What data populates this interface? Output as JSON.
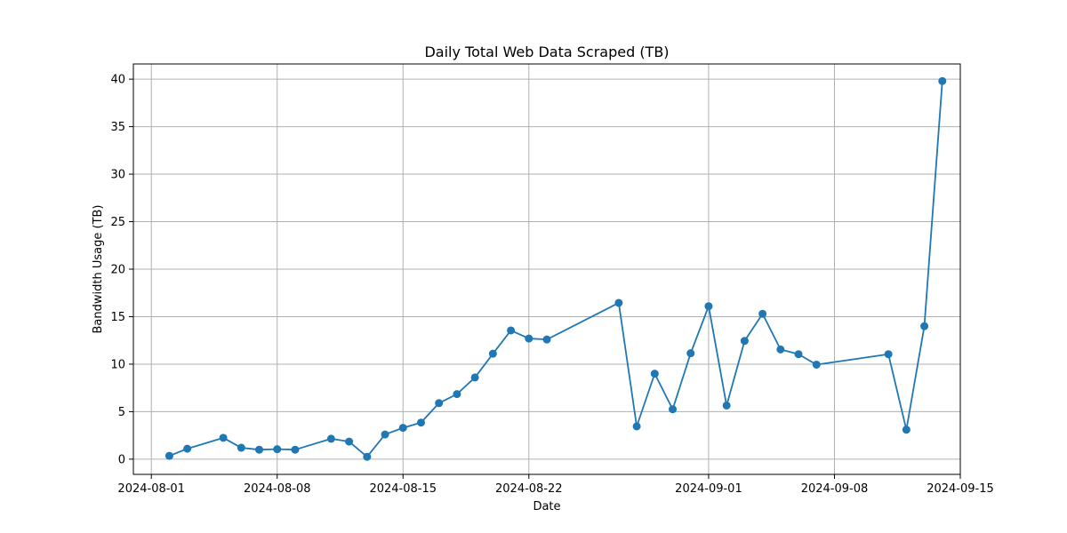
{
  "chart_data": {
    "type": "line",
    "title": "Daily Total Web Data Scraped (TB)",
    "xlabel": "Date",
    "ylabel": "Bandwidth Usage (TB)",
    "x_ticks": [
      "2024-08-01",
      "2024-08-08",
      "2024-08-15",
      "2024-08-22",
      "2024-09-01",
      "2024-09-08",
      "2024-09-15"
    ],
    "y_ticks": [
      0,
      5,
      10,
      15,
      20,
      25,
      30,
      35,
      40
    ],
    "xlim": [
      "2024-07-31T00:00",
      "2024-09-15T00:00"
    ],
    "ylim": [
      -1.6,
      41.6
    ],
    "grid": true,
    "marker": "circle",
    "color": "#1f77b4",
    "series": [
      {
        "points": [
          {
            "x": "2024-08-02",
            "y": 0.35
          },
          {
            "x": "2024-08-03",
            "y": 1.1
          },
          {
            "x": "2024-08-05",
            "y": 2.25
          },
          {
            "x": "2024-08-06",
            "y": 1.2
          },
          {
            "x": "2024-08-07",
            "y": 1.0
          },
          {
            "x": "2024-08-08",
            "y": 1.05
          },
          {
            "x": "2024-08-09",
            "y": 1.0
          },
          {
            "x": "2024-08-11",
            "y": 2.15
          },
          {
            "x": "2024-08-12",
            "y": 1.85
          },
          {
            "x": "2024-08-13",
            "y": 0.25
          },
          {
            "x": "2024-08-14",
            "y": 2.6
          },
          {
            "x": "2024-08-15",
            "y": 3.3
          },
          {
            "x": "2024-08-16",
            "y": 3.85
          },
          {
            "x": "2024-08-17",
            "y": 5.9
          },
          {
            "x": "2024-08-18",
            "y": 6.85
          },
          {
            "x": "2024-08-19",
            "y": 8.6
          },
          {
            "x": "2024-08-20",
            "y": 11.1
          },
          {
            "x": "2024-08-21",
            "y": 13.55
          },
          {
            "x": "2024-08-22",
            "y": 12.7
          },
          {
            "x": "2024-08-23",
            "y": 12.6
          },
          {
            "x": "2024-08-27",
            "y": 16.45
          },
          {
            "x": "2024-08-28",
            "y": 3.45
          },
          {
            "x": "2024-08-29",
            "y": 9.0
          },
          {
            "x": "2024-08-30",
            "y": 5.25
          },
          {
            "x": "2024-08-31",
            "y": 11.15
          },
          {
            "x": "2024-09-01",
            "y": 16.1
          },
          {
            "x": "2024-09-02",
            "y": 5.65
          },
          {
            "x": "2024-09-03",
            "y": 12.45
          },
          {
            "x": "2024-09-04",
            "y": 15.3
          },
          {
            "x": "2024-09-05",
            "y": 11.55
          },
          {
            "x": "2024-09-06",
            "y": 11.05
          },
          {
            "x": "2024-09-07",
            "y": 9.95
          },
          {
            "x": "2024-09-11",
            "y": 11.05
          },
          {
            "x": "2024-09-12",
            "y": 3.1
          },
          {
            "x": "2024-09-13",
            "y": 14.0
          },
          {
            "x": "2024-09-14",
            "y": 39.8
          }
        ]
      }
    ]
  }
}
